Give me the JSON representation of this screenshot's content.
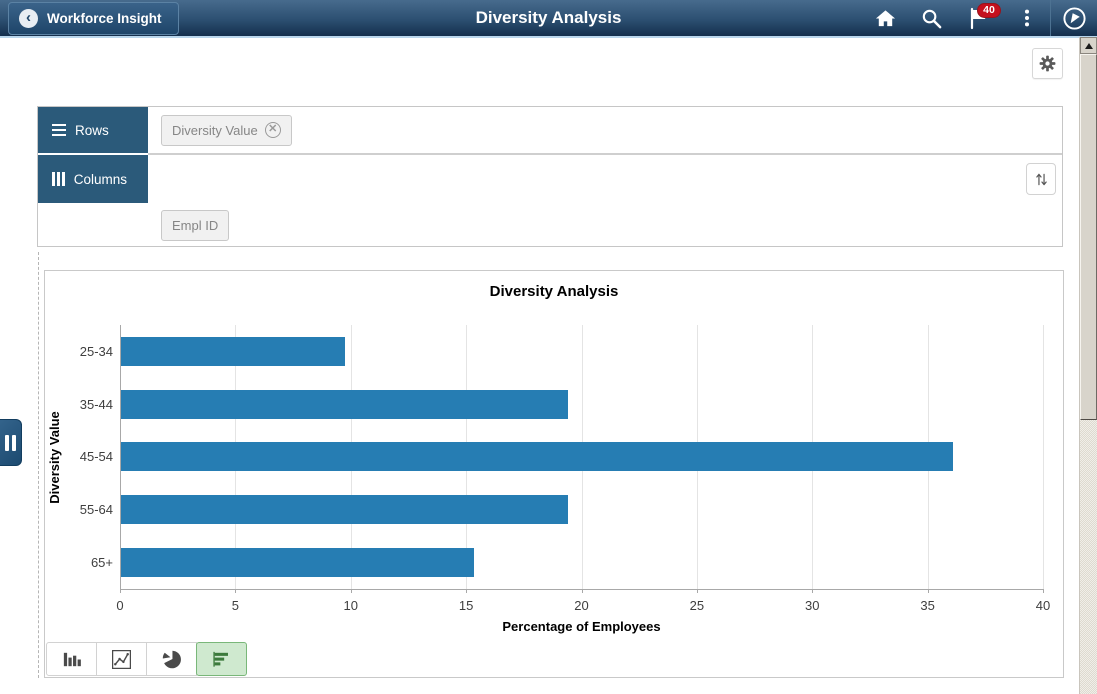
{
  "header": {
    "back_label": "Workforce Insight",
    "title": "Diversity Analysis",
    "notification_count": "40",
    "icons": [
      "home-icon",
      "search-icon",
      "notification-flag-icon",
      "kebab-menu-icon",
      "navbar-compass-icon"
    ]
  },
  "actions": {
    "gear_icon": "gear-icon"
  },
  "pivot_panel": {
    "rows_label": "Rows",
    "columns_label": "Columns",
    "row_chips": [
      {
        "label": "Diversity Value",
        "removable": true
      }
    ],
    "column_chips": [],
    "available_chips": [
      {
        "label": "Empl ID",
        "removable": false
      }
    ],
    "sort_icon": "sort-arrows-icon"
  },
  "chart_toolbar": {
    "types": [
      "vertical-bar",
      "line",
      "pie",
      "horizontal-bar"
    ],
    "selected": "horizontal-bar"
  },
  "chart_data": {
    "type": "bar",
    "orientation": "horizontal",
    "title": "Diversity Analysis",
    "categories": [
      "25-34",
      "35-44",
      "45-54",
      "55-64",
      "65+"
    ],
    "values": [
      9.7,
      19.4,
      36.1,
      19.4,
      15.3
    ],
    "xlabel": "Percentage of Employees",
    "ylabel": "Diversity Value",
    "xlim": [
      0,
      40
    ],
    "xticks": [
      0,
      5,
      10,
      15,
      20,
      25,
      30,
      35,
      40
    ],
    "grid": true,
    "legend": "none",
    "bar_color": "#267db3"
  },
  "colors": {
    "header_gradient_top": "#476b8d",
    "header_gradient_bottom": "#142f4d",
    "header_underline": "#b9d6ec",
    "panel_accent_blue": "#2b5a7a",
    "bar_blue": "#267db3",
    "selected_type_bg": "#cfe9cf",
    "selected_type_border": "#79b779",
    "badge_red": "#c5101e"
  }
}
